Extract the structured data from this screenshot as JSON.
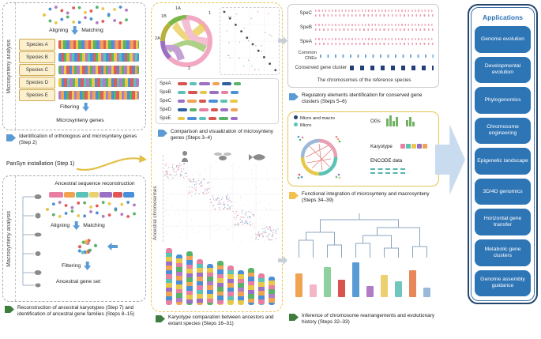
{
  "colors": {
    "accent_blue": "#2e75b6",
    "arrow_blue": "#5b9bd5",
    "arrow_green": "#3f7d3f",
    "arrow_yellow": "#f2c14e",
    "panel_yellow_border": "#e6c550",
    "app_border_navy": "#24456e",
    "big_arrow_blue": "#c9dcef"
  },
  "micro_panel": {
    "side_label": "Microsynteny analysis",
    "species": [
      "Species A",
      "Species B",
      "Species C",
      "Species D",
      "Species E"
    ],
    "aligning_label": "Aligning",
    "matching_label": "Matching",
    "filtering_label": "Filtering",
    "result_label": "Microsynteny genes"
  },
  "left_captions": {
    "step2": "Identification of orthologous and microsynteny genes (Step 2)",
    "step1": "PanSyn installation (Step 1)",
    "steps7_15": "Reconstruction of ancestral karyotypes (Step 7) and identification of ancestral gene families (Steps 8–15)"
  },
  "macro_panel": {
    "side_label": "Macrosynteny analysis",
    "reconstruction_label": "Ancestral sequence reconstruction",
    "aligning_label": "Aligning",
    "matching_label": "Matching",
    "filtering_label": "Filtering",
    "result_label": "Ancestral gene set"
  },
  "middle_panel": {
    "chord_labels": {
      "l1b": "1B",
      "l1a": "1A",
      "l1": "1",
      "l2a": "2A",
      "l2": "2"
    },
    "spe_rows": [
      "SpeA",
      "SpeB",
      "SpeC",
      "SpeD",
      "SpeE"
    ],
    "caption_steps3_4": "Comparison and visualization of microsynteny genes (Steps 3–4)",
    "ancestral_chromosomes_label": "Ancestral chromosomes",
    "caption_steps16_31": "Karyotype comparation between ancestors and extant species (Steps 16–31)"
  },
  "regulatory_panel": {
    "tracks": [
      "SpeC",
      "SpeB",
      "SpeA"
    ],
    "common_cnes_label": "Common CNEs",
    "conserved_cluster_label": "Conserved gene cluster",
    "axis_label": "The chromosomes of the reference species",
    "caption_steps5_6": "Regulatory elements identification for conserved gene clusters (Steps 5–6)"
  },
  "integration_panel": {
    "legend_macro": "Micro and macro",
    "legend_micro": "Micro",
    "ogs_label": "OGs",
    "karyotype_label": "Karyotype",
    "encode_label": "ENCODE data",
    "caption_steps34_39": "Functional integration of microsynteny and macrosynteny (Steps 34–39)"
  },
  "inference_panel": {
    "caption_steps32_33": "Inference of chromosome rearrangements and evolutionary history (Steps 32–33)"
  },
  "applications": {
    "title": "Applications",
    "items": [
      "Genome evolution",
      "Developmental evolution",
      "Phylogenomics",
      "Chromosome engineering",
      "Epigenetic landscape",
      "3D/4D genomics",
      "Horizontal gene transfer",
      "Metabolic gene clusters",
      "Genome assembly guidance"
    ]
  }
}
